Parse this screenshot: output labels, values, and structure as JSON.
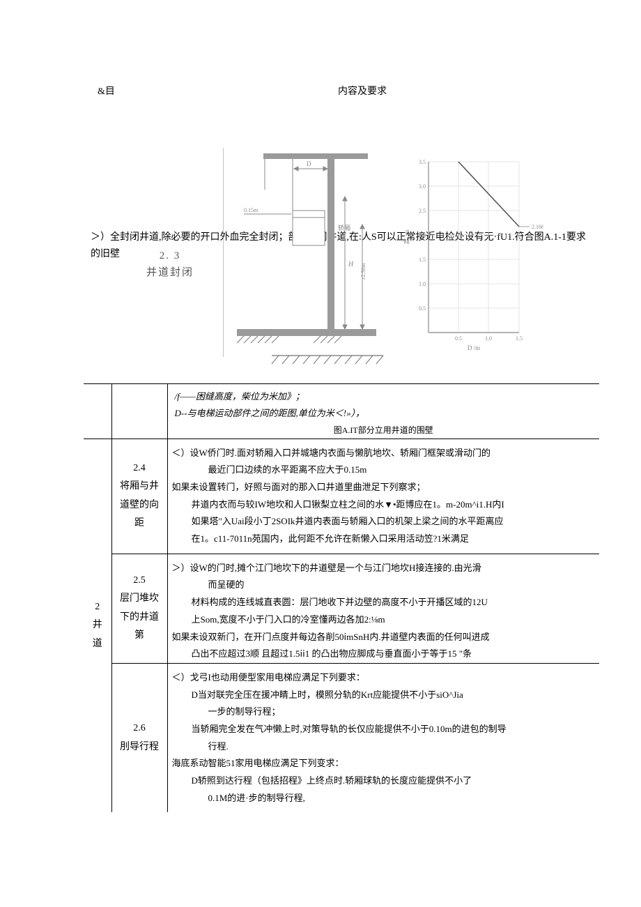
{
  "header": {
    "left": "&目",
    "right": "内容及要求"
  },
  "section23": {
    "intro": "＞）全封闭井道,除必要的开口外血完全封闭；部分封闭井道,在:人S可以正常接近电检处设有无·fU1.符合图A.1-1要求的旧壁",
    "label_num": "2. 3",
    "label_text": "并道封闭",
    "note_h": "/f——困缝高度，柴位为米加》；",
    "note_d": "D--与电梯运动部件之间的距图,单位为米＜!»），",
    "caption": "图A.IT部分立用井道的围壁",
    "diagram": {
      "left_panel": {
        "bg": "#ffffff",
        "line": "#888888",
        "hatch": "#777777",
        "thick": "#9a9a9a"
      },
      "right_panel": {
        "axis_color": "#888888",
        "grid_color": "#dddddd",
        "y_ticks": [
          "3.5",
          "3.0",
          "2.5",
          "2.0",
          "1.5",
          "1.0",
          "0.5"
        ],
        "y_label": "高 /m",
        "x_ticks": [
          "0.5",
          "1.0",
          "1.5"
        ],
        "x_label": "D /m",
        "line_points": [
          [
            0.5,
            3.5
          ],
          [
            1.5,
            2.166
          ]
        ],
        "xlim": [
          0,
          1.5
        ],
        "ylim": [
          0,
          3.5
        ],
        "ref_label": "2.166"
      }
    }
  },
  "rows": {
    "seq": "2",
    "seq_label": "井道",
    "r24": {
      "num": "2.4",
      "title": "将厢与井道壁的向距",
      "content": "＜）设W侨门时.面对轿厢入口并城塘内衣面与懒肮地坎、轿厢门框架或滑动门的\n最近门口边续的水平距离不应大于0.15m\n如果未设置转门，好照与面对的那入口井道里曲泄足下列察求；\n井道内衣而与较IW地坎和人口锹梨立柱之间的水▼•距博应在1。m-20m^i1.H内I\n如果塔\"入Uai段小丁2SOIk井道内表面与轿厢入口的机架上梁之间的水平距离应\n在1。c11-7011n苑国内，此何距不允许在新懒入口采用活动笠?1米满足"
    },
    "r25": {
      "num": "2.5",
      "title": "层门堆坎下的井道第",
      "content": "＞）设W的门时,摊个江门地坎下的井道壁是一个与江门地坎H接连接的.由光滑\n而呈硬的\n材料构成的连线城直表圆：层门地收下并边壁的高度不小于开播区域的12U\n上Som,宽度不小于门入口的冷室懂两边各加2:⅛m\n如果未设双新门，在开门点度并每边各削50ⅰmSnH内.井道壁内表面的任何叫进成\n凸出不应超过3顺 且超过1.5ⅰⅰ1 的凸出物应脚成与垂直面小于等于15 \"条"
    },
    "r26": {
      "num": "2.6",
      "title": "刖导行程",
      "content": "＜）戈弓I也动用便型家用电梯应满足下列要求：\nD当对联完全压在援冲睛上时，模照分轨的Krt应能提供不小于siO^Jia\n一步的制导行程；\n当轿厢完全发在气冲懒上时,对策导轨的长仅应能提供不小于0.10m的进包的制导\n行程.\n海底系动智能51家用电梯应满足下列变求：\nD轿照到达行程（包括招程》上终点时.轿厢球轨的长度应能提供不小了\n0.1M的进·步的制导行程,"
    }
  }
}
